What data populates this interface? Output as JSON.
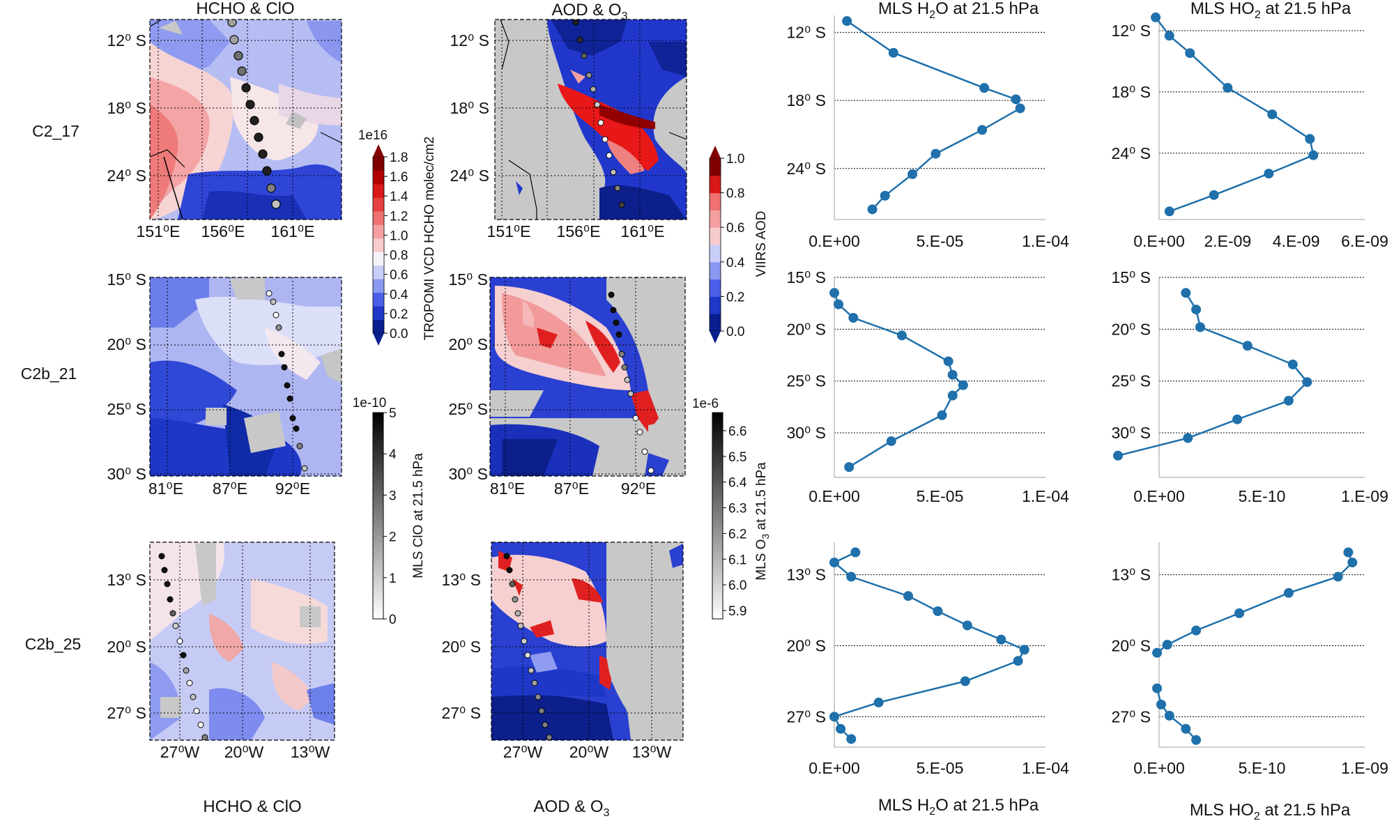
{
  "titles": {
    "hcho_clo": "HCHO & ClO",
    "aod_o3_pre": "AOD & O",
    "aod_o3_sub": "3",
    "h2o_pre": "MLS H",
    "h2o_sub": "2",
    "h2o_post": "O at 21.5 hPa",
    "ho2_pre": "MLS HO",
    "ho2_sub": "2",
    "ho2_post": " at 21.5 hPa"
  },
  "rows": [
    "C2_17",
    "C2b_21",
    "C2b_25"
  ],
  "colorbars": {
    "hcho": {
      "exponent": "1e16",
      "label": "TROPOMI VCD HCHO molec/cm2",
      "ticks": [
        "0.0",
        "0.2",
        "0.4",
        "0.6",
        "0.8",
        "1.0",
        "1.2",
        "1.4",
        "1.6",
        "1.8"
      ],
      "colors": [
        "#0a1f8f",
        "#2038c8",
        "#4a5ee8",
        "#8a98f0",
        "#c8cef8",
        "#f4f4f8",
        "#f8cccc",
        "#f4a0a0",
        "#ee7070",
        "#e84040",
        "#d81818",
        "#b00000",
        "#800000"
      ]
    },
    "aod": {
      "label": "VIIRS AOD",
      "ticks": [
        "0.0",
        "0.2",
        "0.4",
        "0.6",
        "0.8",
        "1.0"
      ],
      "colors": [
        "#0a1f8f",
        "#2038c8",
        "#4a5ee8",
        "#8a98f0",
        "#c8cef8",
        "#f8cccc",
        "#f4a0a0",
        "#ee7070",
        "#d81818",
        "#800000"
      ]
    },
    "clo": {
      "exponent": "1e-10",
      "label": "MLS ClO at 21.5 hPa",
      "ticks": [
        "0",
        "1",
        "2",
        "3",
        "4",
        "5"
      ]
    },
    "o3": {
      "exponent": "1e-6",
      "label": "MLS O3 at 21.5 hPa",
      "label_pre": "MLS O",
      "label_sub": "3",
      "label_post": " at 21.5 hPa",
      "ticks": [
        "5.9",
        "6.0",
        "6.1",
        "6.2",
        "6.3",
        "6.4",
        "6.5",
        "6.6"
      ]
    }
  },
  "maps": {
    "row1": {
      "yticks": [
        "12⁰ S",
        "18⁰ S",
        "24⁰ S"
      ],
      "xticks": [
        "151⁰E",
        "156⁰E",
        "161⁰E"
      ]
    },
    "row2": {
      "yticks": [
        "15⁰ S",
        "20⁰ S",
        "25⁰ S",
        "30⁰ S"
      ],
      "xticks": [
        "81⁰E",
        "87⁰E",
        "92⁰E"
      ]
    },
    "row3": {
      "yticks": [
        "13⁰ S",
        "20⁰ S",
        "27⁰ S"
      ],
      "xticks": [
        "27⁰W",
        "20⁰W",
        "13⁰W"
      ]
    }
  },
  "chart_data": [
    {
      "type": "line",
      "panel": "C2_17 MLS H2O at 21.5 hPa",
      "series": [
        {
          "x": [
            6e-06,
            2.8e-05,
            7.1e-05,
            8.6e-05,
            8.8e-05,
            7e-05,
            4.8e-05,
            3.7e-05,
            2.4e-05,
            1.8e-05
          ],
          "y": [
            11,
            13.8,
            16.9,
            17.9,
            18.7,
            20.6,
            22.7,
            24.5,
            26.4,
            27.6
          ]
        }
      ],
      "xlim": [
        0,
        0.0001
      ],
      "xticks": [
        "0.E+00",
        "5.E-05",
        "1.E-04"
      ],
      "ylim": [
        10.5,
        28.5
      ],
      "yticks": [
        "12⁰ S",
        "18⁰ S",
        "24⁰ S"
      ],
      "ygrid": [
        12,
        18,
        24
      ]
    },
    {
      "type": "line",
      "panel": "C2_17 MLS HO2 at 21.5 hPa",
      "series": [
        {
          "x": [
            -1e-10,
            3e-10,
            9e-10,
            2e-09,
            3.3e-09,
            4.4e-09,
            4.5e-09,
            3.2e-09,
            1.6e-09,
            3e-10
          ],
          "y": [
            10.7,
            12.5,
            14.2,
            17.6,
            20.2,
            22.6,
            24.2,
            26.0,
            28.1,
            29.7
          ]
        }
      ],
      "xlim": [
        0,
        6e-09
      ],
      "xticks": [
        "0.E+00",
        "2.E-09",
        "4.E-09",
        "6.E-09"
      ],
      "ylim": [
        10.5,
        30.5
      ],
      "yticks": [
        "12⁰ S",
        "18⁰ S",
        "24⁰ S"
      ],
      "ygrid": [
        12,
        18,
        24
      ]
    },
    {
      "type": "line",
      "panel": "C2b_21 MLS H2O at 21.5 hPa",
      "series": [
        {
          "x": [
            0,
            2e-06,
            9e-06,
            3.2e-05,
            5.4e-05,
            5.6e-05,
            6.1e-05,
            5.6e-05,
            5.1e-05,
            2.7e-05,
            7e-06
          ],
          "y": [
            16.5,
            17.6,
            18.9,
            20.6,
            23.1,
            24.4,
            25.4,
            26.4,
            28.3,
            30.8,
            33.3
          ]
        }
      ],
      "xlim": [
        0,
        0.0001
      ],
      "xticks": [
        "0.E+00",
        "5.E-05",
        "1.E-04"
      ],
      "ylim": [
        15,
        34.3
      ],
      "yticks": [
        "15⁰ S",
        "20⁰ S",
        "25⁰ S",
        "30⁰ S"
      ],
      "ygrid": [
        15,
        20,
        25,
        30
      ]
    },
    {
      "type": "line",
      "panel": "C2b_21 MLS HO2 at 21.5 hPa",
      "series": [
        {
          "x": [
            1.3e-10,
            1.8e-10,
            2e-10,
            4.3e-10,
            6.5e-10,
            7.2e-10,
            6.3e-10,
            3.8e-10,
            1.4e-10,
            -2e-10
          ],
          "y": [
            16.5,
            18.1,
            19.8,
            21.6,
            23.4,
            25.1,
            26.9,
            28.7,
            30.5,
            32.2
          ]
        }
      ],
      "xlim": [
        0,
        1e-09
      ],
      "xticks": [
        "0.E+00",
        "5.E-10",
        "1.E-09"
      ],
      "ylim": [
        15,
        34.3
      ],
      "yticks": [
        "15⁰ S",
        "20⁰ S",
        "25⁰ S",
        "30⁰ S"
      ],
      "ygrid": [
        15,
        20,
        25,
        30
      ]
    },
    {
      "type": "line",
      "panel": "C2b_25 MLS H2O at 21.5 hPa",
      "series": [
        {
          "x": [
            1e-05,
            0,
            8e-06,
            3.5e-05,
            4.9e-05,
            6.3e-05,
            7.9e-05,
            9e-05,
            8.7e-05,
            6.2e-05,
            2.1e-05,
            0,
            3e-06,
            8e-06
          ],
          "y": [
            10.8,
            11.8,
            13.2,
            15.1,
            16.6,
            18.0,
            19.4,
            20.4,
            21.5,
            23.5,
            25.6,
            27.0,
            28.2,
            29.2
          ]
        }
      ],
      "xlim": [
        0,
        0.0001
      ],
      "xticks": [
        "0.E+00",
        "5.E-05",
        "1.E-04"
      ],
      "ylim": [
        9.8,
        30
      ],
      "yticks": [
        "13⁰ S",
        "20⁰ S",
        "27⁰ S"
      ],
      "ygrid": [
        13,
        20,
        27
      ]
    },
    {
      "type": "line",
      "panel": "C2b_25 MLS HO2 at 21.5 hPa",
      "series": [
        {
          "x": [
            9.2e-10,
            9.4e-10,
            8.7e-10,
            6.3e-10,
            3.9e-10,
            1.8e-10,
            4e-11,
            -1e-11
          ],
          "y": [
            10.8,
            11.8,
            13.2,
            14.8,
            16.8,
            18.5,
            19.9,
            20.7
          ]
        },
        {
          "x": [
            -1e-11,
            1e-11,
            5e-11,
            1.3e-10,
            1.8e-10
          ],
          "y": [
            24.2,
            25.8,
            26.9,
            28.2,
            29.3
          ]
        }
      ],
      "xlim": [
        0,
        1e-09
      ],
      "xticks": [
        "0.E+00",
        "5.E-10",
        "1.E-09"
      ],
      "ylim": [
        9.8,
        30
      ],
      "yticks": [
        "13⁰ S",
        "20⁰ S",
        "27⁰ S"
      ],
      "ygrid": [
        13,
        20,
        27
      ]
    }
  ]
}
